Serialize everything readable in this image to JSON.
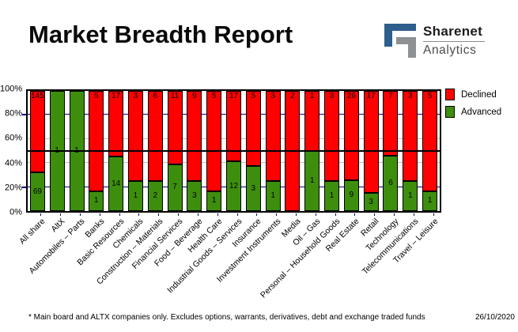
{
  "header": {
    "title": "Market Breadth Report",
    "logo": {
      "brand": "Sharenet",
      "sub": "Analytics",
      "icon": "sharenet-square-spiral",
      "blue": "#2d5e8c",
      "gray": "#8e9193"
    }
  },
  "chart_data": {
    "type": "bar",
    "stacked": true,
    "orientation": "vertical",
    "categories": [
      "All share",
      "AltX",
      "Automobiles – Parts",
      "Banks",
      "Basic Resources",
      "Chemicals",
      "Construction – Materials",
      "Financial Services",
      "Food – Beverage",
      "Health Care",
      "Industrial Goods – Services",
      "Insurance",
      "Investment Instruments",
      "Media",
      "Oil – Gas",
      "Personal – Household Goods",
      "Real Estate",
      "Retail",
      "Technology",
      "Telecommunications",
      "Travel – Leisure"
    ],
    "series": [
      {
        "name": "Declined",
        "color": "#ff0000",
        "values": [
          145,
          0,
          0,
          5,
          17,
          3,
          6,
          11,
          9,
          5,
          17,
          5,
          3,
          2,
          1,
          3,
          26,
          17,
          7,
          3,
          5
        ]
      },
      {
        "name": "Advanced",
        "color": "#3e8e0e",
        "values": [
          69,
          1,
          1,
          1,
          14,
          1,
          2,
          7,
          3,
          1,
          12,
          3,
          1,
          0,
          1,
          1,
          9,
          3,
          6,
          1,
          1
        ]
      }
    ],
    "value_axis": "percent_of_total",
    "ylim": [
      0,
      100
    ],
    "yticks": [
      "100%",
      "80%",
      "60%",
      "40%",
      "20%",
      "0%"
    ],
    "grid": "horizontal",
    "gridlines": [
      {
        "level": 80,
        "color": "#000080"
      },
      {
        "level": 60,
        "color": "#c0c0c0"
      },
      {
        "level": 40,
        "color": "#c0c0c0"
      },
      {
        "level": 20,
        "color": "#000080"
      }
    ],
    "reference_line": {
      "level": 50,
      "color": "#000000"
    },
    "legend_position": "top-right"
  },
  "footer": {
    "note": "* Main board and ALTX companies only. Excludes options, warrants, derivatives, debt and exchange traded funds",
    "date": "26/10/2020"
  }
}
